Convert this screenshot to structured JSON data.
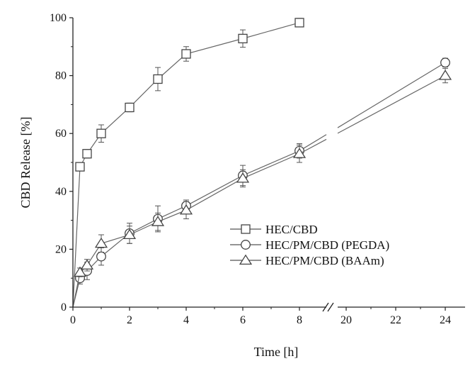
{
  "chart_data": {
    "type": "line",
    "title": "",
    "xlabel": "Time [h]",
    "ylabel": "CBD Release [%]",
    "ylim": [
      0,
      100
    ],
    "yticks": [
      0,
      20,
      40,
      60,
      80,
      100
    ],
    "x_axis_break": {
      "segments": [
        [
          0,
          9
        ],
        [
          19.6,
          24.8
        ]
      ],
      "xticks": [
        0,
        2,
        4,
        6,
        8,
        20,
        22,
        24
      ]
    },
    "grid": false,
    "legend_position": "lower-right",
    "series": [
      {
        "name": "HEC/CBD",
        "marker": "square",
        "x": [
          0,
          0.25,
          0.5,
          1,
          2,
          3,
          4,
          6,
          8
        ],
        "y": [
          0,
          48.5,
          53,
          60,
          69,
          78.8,
          87.5,
          92.8,
          98.3
        ],
        "error": [
          0,
          1,
          1.5,
          3,
          1.5,
          4,
          2.5,
          3,
          1.5
        ]
      },
      {
        "name": "HEC/PM/CBD (PEGDA)",
        "marker": "circle",
        "x": [
          0,
          0.25,
          0.5,
          1,
          2,
          3,
          4,
          6,
          8,
          24
        ],
        "y": [
          0,
          10,
          12.5,
          17.5,
          25.5,
          30.5,
          35,
          45.5,
          54,
          84.5
        ],
        "error": [
          0,
          2,
          3,
          3,
          3.5,
          4.5,
          2,
          3.5,
          2.5,
          1.5
        ]
      },
      {
        "name": "HEC/PM/CBD (BAAm)",
        "marker": "triangle",
        "x": [
          0,
          0.25,
          0.5,
          1,
          2,
          3,
          4,
          6,
          8,
          24
        ],
        "y": [
          0,
          12,
          14.5,
          22,
          25,
          29.5,
          33.5,
          44.5,
          53,
          80
        ],
        "error": [
          0,
          1.5,
          2,
          3,
          3,
          3,
          3,
          3,
          3,
          2.5
        ]
      }
    ]
  }
}
